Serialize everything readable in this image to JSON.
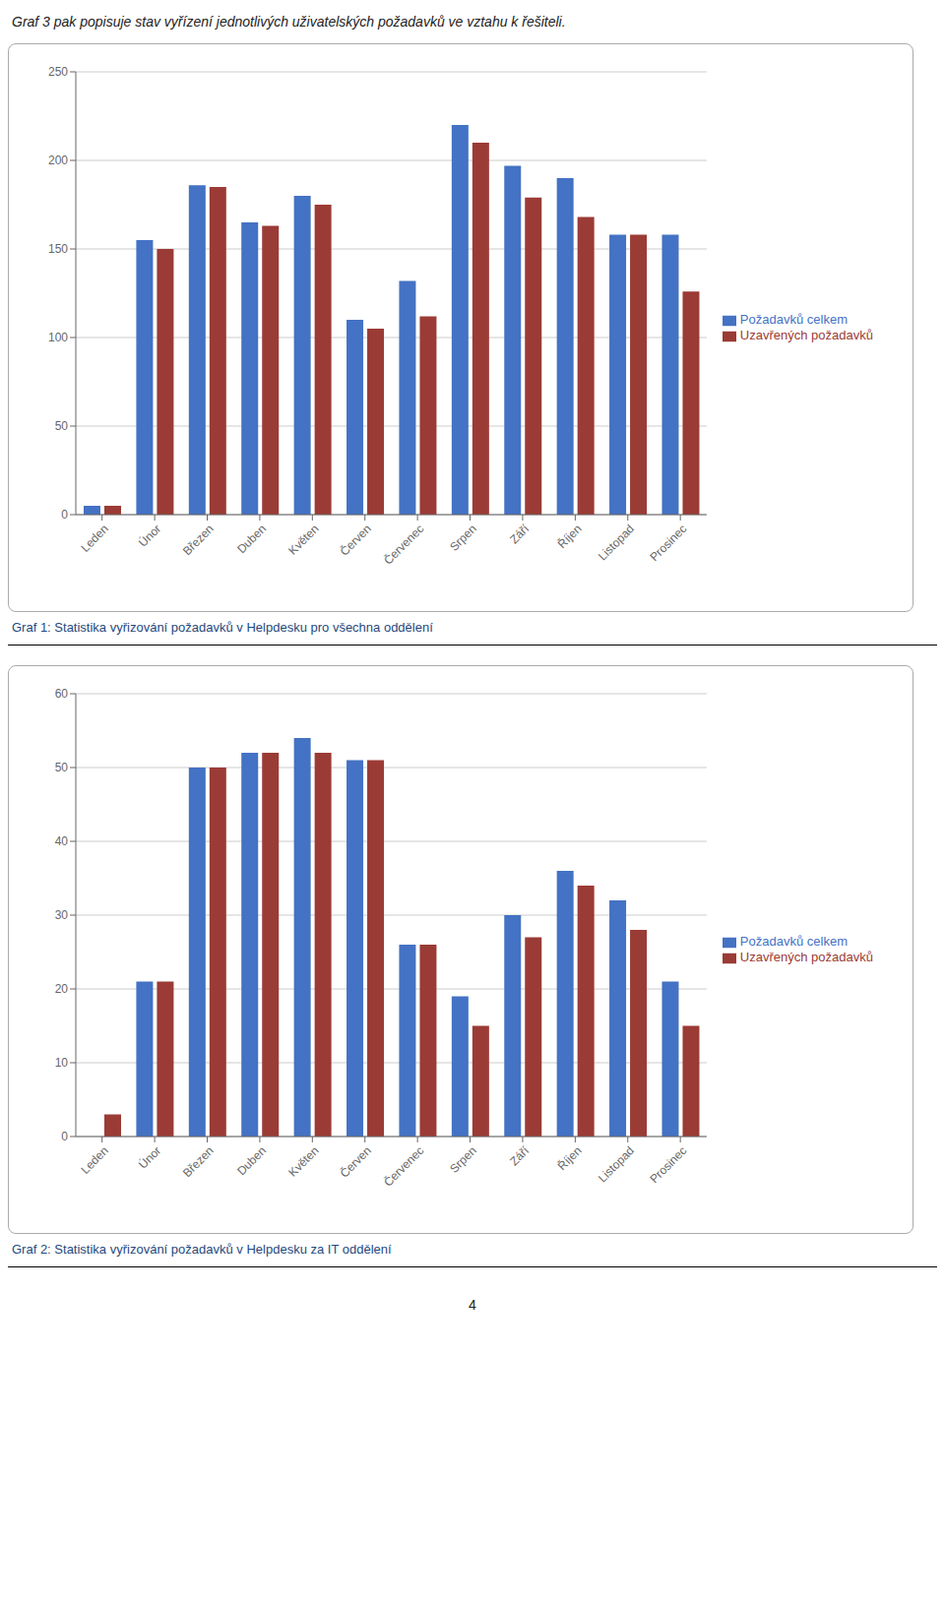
{
  "chart_data": [
    {
      "type": "bar",
      "title": "Graf 1: Statistika vyřizování požadavků v Helpdesku pro všechna oddělení",
      "annotations": [
        "Graf 3 pak popisuje stav vyřízení jednotlivých uživatelských požadavků ve vztahu k řešiteli."
      ],
      "categories": [
        "Leden",
        "Únor",
        "Březen",
        "Duben",
        "Květen",
        "Červen",
        "Červenec",
        "Srpen",
        "Září",
        "Říjen",
        "Listopad",
        "Prosinec"
      ],
      "series": [
        {
          "name": "Požadavků celkem",
          "color": "#4472C4",
          "values": [
            5,
            155,
            186,
            165,
            180,
            110,
            132,
            220,
            197,
            190,
            158,
            158
          ]
        },
        {
          "name": "Uzavřených požadavků",
          "color": "#9B3B35",
          "values": [
            5,
            150,
            185,
            163,
            175,
            105,
            112,
            210,
            179,
            168,
            158,
            126
          ]
        }
      ],
      "ylim": [
        0,
        250
      ],
      "yticks": [
        0,
        50,
        100,
        150,
        200,
        250
      ],
      "grid": true,
      "legend": "right"
    },
    {
      "type": "bar",
      "title": "Graf 2: Statistika vyřizování požadavků v Helpdesku za IT oddělení",
      "annotations": [
        "4"
      ],
      "categories": [
        "Leden",
        "Únor",
        "Březen",
        "Duben",
        "Květen",
        "Červen",
        "Červenec",
        "Srpen",
        "Září",
        "Říjen",
        "Listopad",
        "Prosinec"
      ],
      "series": [
        {
          "name": "Požadavků celkem",
          "color": "#4472C4",
          "values": [
            0,
            21,
            50,
            52,
            54,
            51,
            26,
            19,
            30,
            36,
            32,
            21
          ]
        },
        {
          "name": "Uzavřených požadavků",
          "color": "#9B3B35",
          "values": [
            3,
            21,
            50,
            52,
            52,
            51,
            26,
            15,
            27,
            34,
            28,
            15
          ]
        }
      ],
      "ylim": [
        0,
        60
      ],
      "yticks": [
        0,
        10,
        20,
        30,
        40,
        50,
        60
      ],
      "grid": true,
      "legend": "right"
    }
  ]
}
